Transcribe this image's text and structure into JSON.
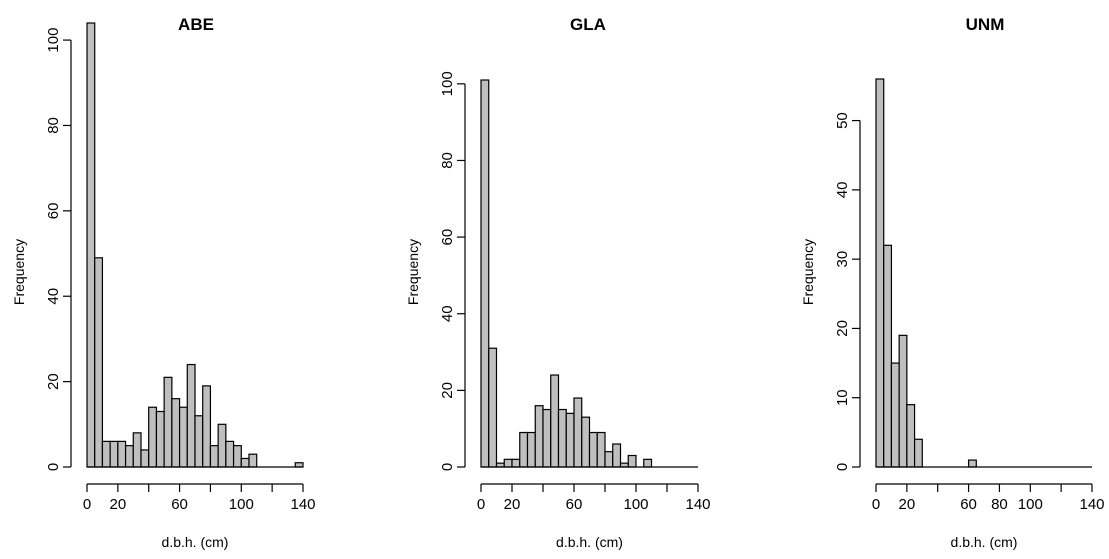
{
  "chart_data": [
    {
      "type": "bar",
      "subtype": "histogram",
      "title": "ABE",
      "xlabel": "d.b.h. (cm)",
      "ylabel": "Frequency",
      "bin_width": 5,
      "bin_start": 0,
      "counts": [
        104,
        49,
        6,
        6,
        6,
        5,
        8,
        4,
        14,
        13,
        21,
        16,
        14,
        24,
        12,
        19,
        5,
        10,
        6,
        5,
        2,
        3,
        0,
        0,
        0,
        0,
        0,
        1
      ],
      "xlim": [
        0,
        140
      ],
      "ylim": [
        0,
        104
      ],
      "x_ticks": [
        0,
        20,
        40,
        60,
        80,
        100,
        120,
        140
      ],
      "x_tick_labels": [
        "0",
        "20",
        "",
        "60",
        "",
        "100",
        "",
        "140"
      ],
      "y_ticks": [
        0,
        20,
        40,
        60,
        80,
        100
      ],
      "y_tick_labels": [
        "0",
        "20",
        "40",
        "60",
        "80",
        "100"
      ]
    },
    {
      "type": "bar",
      "subtype": "histogram",
      "title": "GLA",
      "xlabel": "d.b.h. (cm)",
      "ylabel": "Frequency",
      "bin_width": 5,
      "bin_start": 0,
      "counts": [
        101,
        31,
        1,
        2,
        2,
        9,
        9,
        16,
        15,
        24,
        15,
        14,
        18,
        13,
        9,
        9,
        4,
        6,
        1,
        3,
        0,
        2
      ],
      "xlim": [
        0,
        140
      ],
      "ylim": [
        0,
        101
      ],
      "x_ticks": [
        0,
        20,
        40,
        60,
        80,
        100,
        120,
        140
      ],
      "x_tick_labels": [
        "0",
        "20",
        "",
        "60",
        "",
        "100",
        "",
        "140"
      ],
      "y_ticks": [
        0,
        20,
        40,
        60,
        80,
        100
      ],
      "y_tick_labels": [
        "0",
        "20",
        "40",
        "60",
        "80",
        "100"
      ]
    },
    {
      "type": "bar",
      "subtype": "histogram",
      "title": "UNM",
      "xlabel": "d.b.h. (cm)",
      "ylabel": "Frequency",
      "bin_width": 5,
      "bin_start": 0,
      "counts": [
        56,
        32,
        15,
        19,
        9,
        4,
        0,
        0,
        0,
        0,
        0,
        0,
        1
      ],
      "xlim": [
        0,
        140
      ],
      "ylim": [
        0,
        56
      ],
      "x_ticks": [
        0,
        20,
        40,
        60,
        80,
        100,
        120,
        140
      ],
      "x_tick_labels": [
        "0",
        "20",
        "",
        "60",
        "80",
        "100",
        "",
        "140"
      ],
      "y_ticks": [
        0,
        10,
        20,
        30,
        40,
        50
      ],
      "y_tick_labels": [
        "0",
        "10",
        "20",
        "30",
        "40",
        "50"
      ]
    }
  ]
}
